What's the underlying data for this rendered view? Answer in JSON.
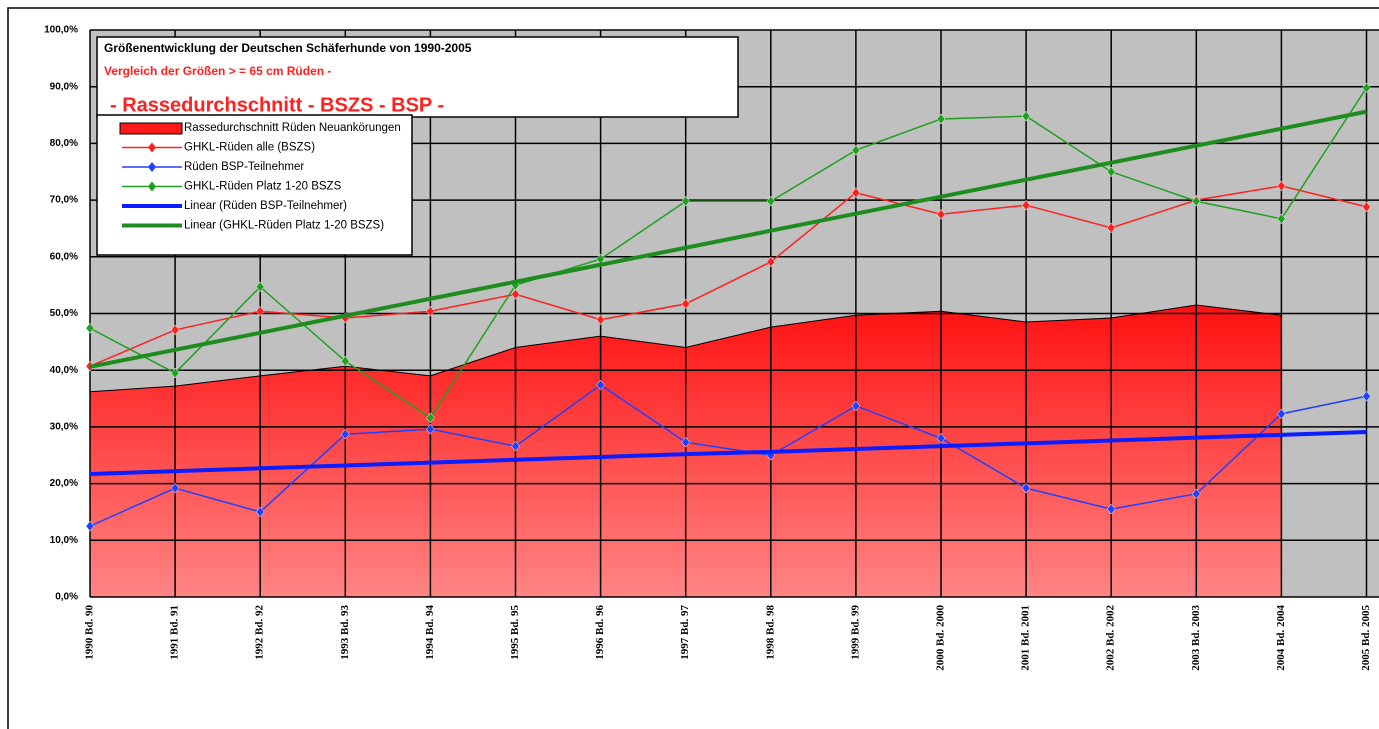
{
  "chart_data": {
    "type": "line",
    "title": "Größenentwicklung der Deutschen Schäferhunde von 1990-2005",
    "subtitle": "Vergleich der Größen > = 65 cm Rüden -",
    "annotation": "- Rassedurchschnitt - BSZS - BSP -",
    "categories": [
      "1990 Bd. 90",
      "1991 Bd. 91",
      "1992 Bd. 92",
      "1993 Bd. 93",
      "1994 Bd. 94",
      "1995 Bd. 95",
      "1996 Bd. 96",
      "1997 Bd. 97",
      "1998 Bd. 98",
      "1999 Bd. 99",
      "2000 Bd. 2000",
      "2001 Bd. 2001",
      "2002 Bd. 2002",
      "2003 Bd. 2003",
      "2004 Bd. 2004",
      "2005 Bd. 2005"
    ],
    "ylim": [
      0,
      100
    ],
    "yticks": [
      {
        "value": 0,
        "label": "0,0%"
      },
      {
        "value": 10,
        "label": "10,0%"
      },
      {
        "value": 20,
        "label": "20,0%"
      },
      {
        "value": 30,
        "label": "30,0%"
      },
      {
        "value": 40,
        "label": "40,0%"
      },
      {
        "value": 50,
        "label": "50,0%"
      },
      {
        "value": 60,
        "label": "60,0%"
      },
      {
        "value": 70,
        "label": "70,0%"
      },
      {
        "value": 80,
        "label": "80,0%"
      },
      {
        "value": 90,
        "label": "90,0%"
      },
      {
        "value": 100,
        "label": "100,0%"
      }
    ],
    "grid": true,
    "series": [
      {
        "name": "Rassedurchschnitt Rüden Neuankörungen",
        "type": "area",
        "color": "#ff1a1a",
        "values": [
          36.2,
          37.2,
          39,
          40.7,
          39,
          44,
          46,
          44,
          47.6,
          49.7,
          50.4,
          48.5,
          49.2,
          51.5,
          49.7,
          null
        ]
      },
      {
        "name": "GHKL-Rüden alle (BSZS)",
        "type": "line",
        "marker": "diamond",
        "color": "#ff2020",
        "values": [
          40.7,
          47.1,
          50.4,
          49.2,
          50.4,
          53.4,
          48.9,
          51.7,
          59.1,
          71.3,
          67.5,
          69.1,
          65.1,
          70,
          72.5,
          68.8
        ]
      },
      {
        "name": "Rüden BSP-Teilnehmer",
        "type": "line",
        "marker": "diamond",
        "color": "#2040ff",
        "values": [
          12.5,
          19.2,
          15,
          28.7,
          29.6,
          26.6,
          37.4,
          27.3,
          25,
          33.7,
          28,
          19.2,
          15.5,
          18.2,
          32.3,
          35.4
        ]
      },
      {
        "name": "GHKL-Rüden Platz 1-20 BSZS",
        "type": "line",
        "marker": "diamond",
        "color": "#20a020",
        "values": [
          47.4,
          39.5,
          54.7,
          41.6,
          31.6,
          55,
          59.6,
          69.8,
          69.8,
          78.8,
          84.3,
          84.8,
          75,
          69.8,
          66.7,
          89.8
        ]
      },
      {
        "name": "Linear (Rüden BSP-Teilnehmer)",
        "type": "trend",
        "color": "#0a1eff",
        "values": [
          21.7,
          22.2,
          22.7,
          23.2,
          23.7,
          24.2,
          24.7,
          25.2,
          25.6,
          26.1,
          26.6,
          27.1,
          27.6,
          28.1,
          28.6,
          29.1
        ]
      },
      {
        "name": "Linear (GHKL-Rüden Platz 1-20 BSZS)",
        "type": "trend",
        "color": "#1e8c1e",
        "values": [
          40.6,
          43.6,
          46.6,
          49.6,
          52.6,
          55.6,
          58.6,
          61.6,
          64.6,
          67.6,
          70.6,
          73.6,
          76.6,
          79.6,
          82.6,
          85.6
        ]
      }
    ]
  }
}
